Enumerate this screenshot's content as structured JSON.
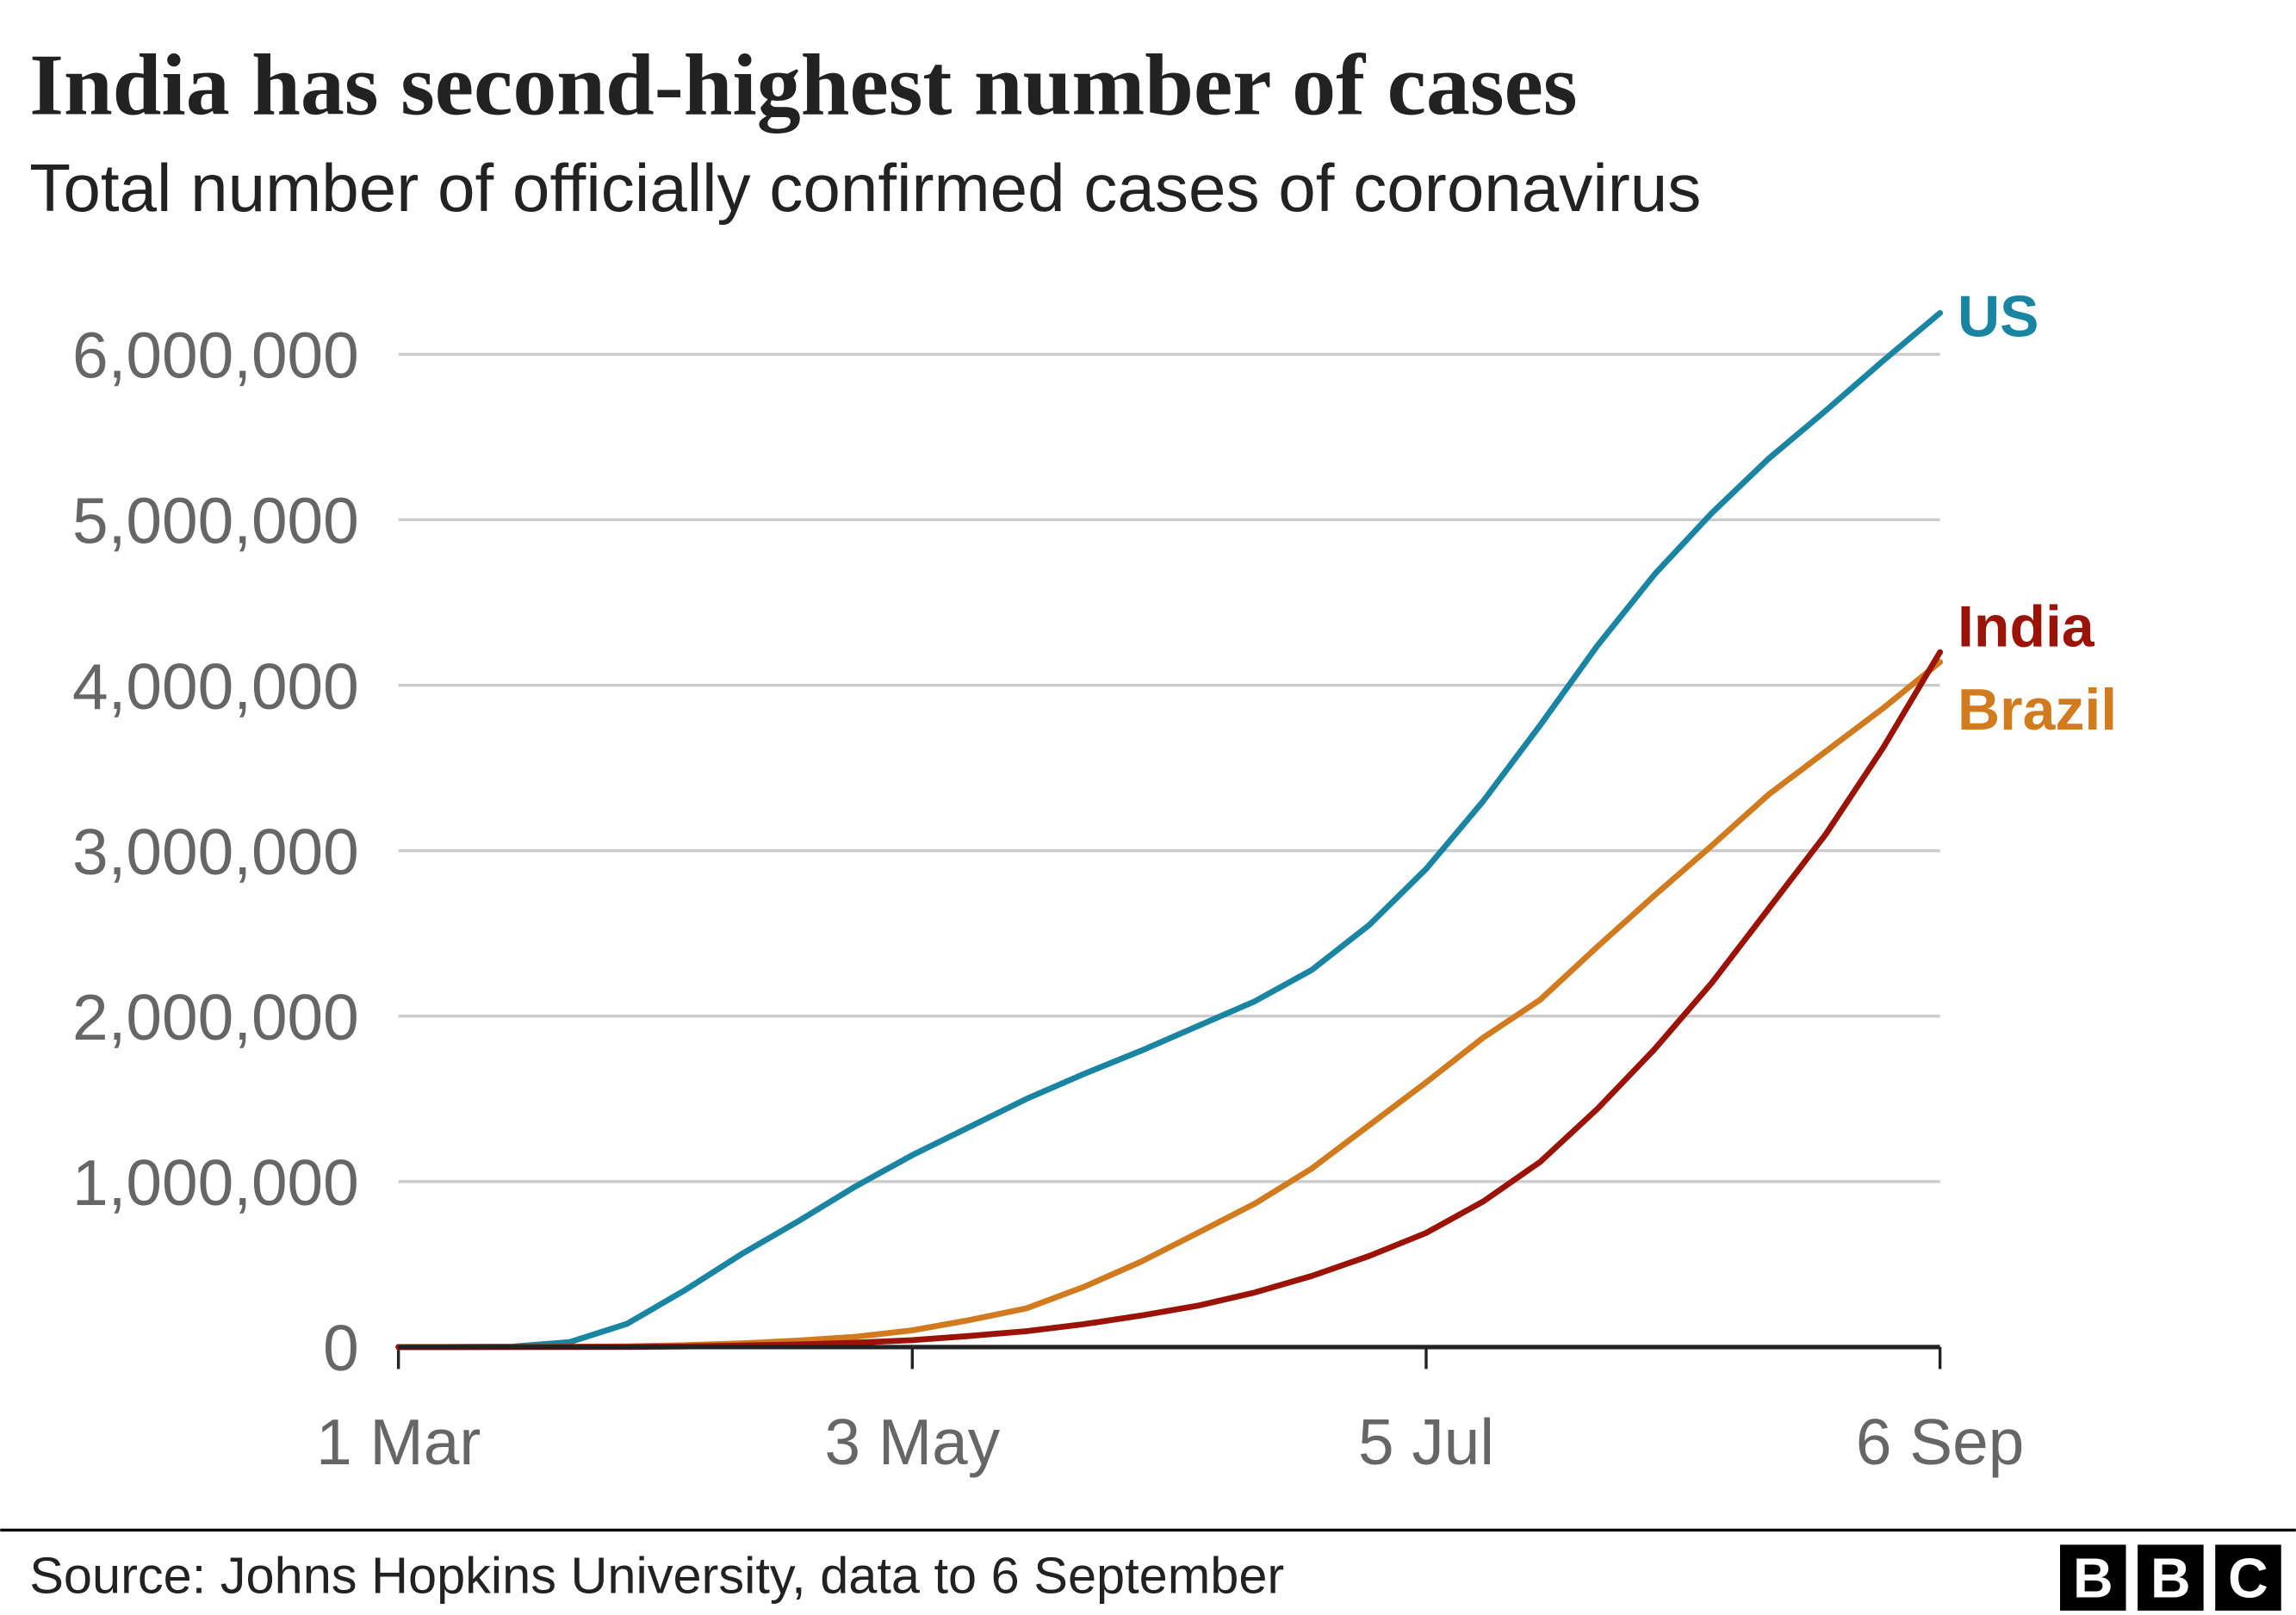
{
  "chart_data": {
    "type": "line",
    "title": "India has second-highest number of cases",
    "subtitle": "Total number of officially confirmed cases of coronavirus",
    "source": "Source: Johns Hopkins University, data to 6 September",
    "logo": [
      "B",
      "B",
      "C"
    ],
    "x": [
      "1 Mar",
      "8 Mar",
      "15 Mar",
      "22 Mar",
      "29 Mar",
      "5 Apr",
      "12 Apr",
      "19 Apr",
      "26 Apr",
      "3 May",
      "10 May",
      "17 May",
      "24 May",
      "31 May",
      "7 Jun",
      "14 Jun",
      "21 Jun",
      "28 Jun",
      "5 Jul",
      "12 Jul",
      "19 Jul",
      "26 Jul",
      "2 Aug",
      "9 Aug",
      "16 Aug",
      "23 Aug",
      "30 Aug",
      "6 Sep"
    ],
    "xticks": [
      "1 Mar",
      "3 May",
      "5 Jul",
      "6 Sep"
    ],
    "ylim": [
      0,
      6000000
    ],
    "yticks": [
      0,
      {
        "value": 1000000,
        "label": "1,000,000"
      },
      {
        "value": 2000000,
        "label": "2,000,000"
      },
      {
        "value": 3000000,
        "label": "3,000,000"
      },
      {
        "value": 4000000,
        "label": "4,000,000"
      },
      {
        "value": 5000000,
        "label": "5,000,000"
      },
      {
        "value": 6000000,
        "label": "6,000,000"
      }
    ],
    "grid": true,
    "series": [
      {
        "name": "US",
        "color": "#1a84a3",
        "values": [
          0,
          500,
          3000,
          30000,
          140000,
          340000,
          560000,
          760000,
          970000,
          1160000,
          1330000,
          1500000,
          1650000,
          1790000,
          1940000,
          2090000,
          2280000,
          2550000,
          2890000,
          3300000,
          3760000,
          4240000,
          4670000,
          5040000,
          5370000,
          5660000,
          5960000,
          6250000
        ]
      },
      {
        "name": "Brazil",
        "color": "#d27a1e",
        "values": [
          0,
          0,
          200,
          1500,
          4000,
          11000,
          22000,
          39000,
          62000,
          101000,
          163000,
          234000,
          363000,
          515000,
          690000,
          867000,
          1080000,
          1340000,
          1600000,
          1870000,
          2100000,
          2420000,
          2730000,
          3030000,
          3340000,
          3600000,
          3860000,
          4140000
        ]
      },
      {
        "name": "India",
        "color": "#9a1306",
        "values": [
          0,
          40,
          100,
          400,
          1000,
          3600,
          9100,
          16000,
          26000,
          42000,
          67000,
          96000,
          138000,
          190000,
          250000,
          330000,
          430000,
          550000,
          690000,
          880000,
          1120000,
          1440000,
          1800000,
          2200000,
          2650000,
          3100000,
          3620000,
          4200000
        ]
      }
    ]
  }
}
